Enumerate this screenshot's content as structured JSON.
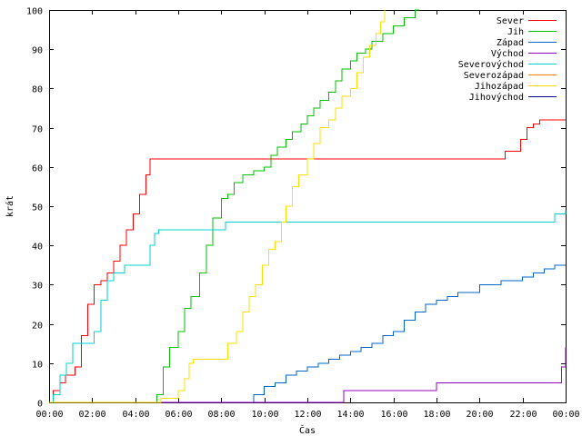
{
  "chart_data": {
    "type": "line",
    "title": "",
    "xlabel": "Čas",
    "ylabel": "krát",
    "xlim": [
      0,
      24
    ],
    "ylim": [
      0,
      100
    ],
    "x_ticks": [
      "00:00",
      "02:00",
      "04:00",
      "06:00",
      "08:00",
      "10:00",
      "12:00",
      "14:00",
      "16:00",
      "18:00",
      "20:00",
      "22:00",
      "00:00"
    ],
    "y_ticks": [
      0,
      10,
      20,
      30,
      40,
      50,
      60,
      70,
      80,
      90,
      100
    ],
    "grid": false,
    "legend_position": "top-right",
    "series": [
      {
        "name": "Sever",
        "color": "#ff0000",
        "x": [
          0,
          0.2,
          0.5,
          0.75,
          1.2,
          1.5,
          1.8,
          2.1,
          2.4,
          2.7,
          3.0,
          3.3,
          3.6,
          3.9,
          4.2,
          4.5,
          4.7,
          4.9,
          5.0,
          8.0,
          12.0,
          16.0,
          20.0,
          21.0,
          21.2,
          21.6,
          21.9,
          22.2,
          22.5,
          22.8,
          23.0,
          24.0
        ],
        "y": [
          0,
          3,
          5,
          7,
          9,
          17,
          25,
          30,
          31,
          33,
          36,
          40,
          44,
          48,
          53,
          58,
          62,
          62,
          62,
          62,
          62,
          62,
          62,
          62,
          64,
          64,
          67,
          70,
          71,
          72,
          72,
          72
        ]
      },
      {
        "name": "Jih",
        "color": "#00c000",
        "x": [
          0,
          4.8,
          5.0,
          5.3,
          5.6,
          6.0,
          6.3,
          6.6,
          7.0,
          7.3,
          7.6,
          8.0,
          8.3,
          8.6,
          9.0,
          9.5,
          10.0,
          10.3,
          10.6,
          11.0,
          11.3,
          11.7,
          12.0,
          12.3,
          12.6,
          13.0,
          13.3,
          13.6,
          14.0,
          14.3,
          14.7,
          15.0,
          15.5,
          16.0,
          16.5,
          17.0,
          17.2,
          18.0,
          24.0
        ],
        "y": [
          0,
          0,
          2,
          9,
          14,
          18,
          24,
          27,
          33,
          40,
          47,
          52,
          53,
          56,
          58,
          59,
          60,
          63,
          65,
          67,
          69,
          71,
          73,
          75,
          77,
          79,
          82,
          85,
          87,
          89,
          90,
          92,
          94,
          96,
          98,
          100,
          100,
          100,
          100
        ],
        "clip_x": 17.2
      },
      {
        "name": "Západ",
        "color": "#0066cc",
        "x": [
          0,
          9.3,
          9.5,
          10.0,
          10.5,
          11.0,
          11.5,
          12.0,
          12.5,
          13.0,
          13.5,
          14.0,
          14.5,
          15.0,
          15.5,
          16.0,
          16.5,
          17.0,
          17.5,
          18.0,
          18.5,
          19.0,
          19.5,
          20.0,
          20.5,
          21.0,
          21.5,
          22.0,
          22.5,
          23.0,
          23.5,
          24.0
        ],
        "y": [
          0,
          0,
          2,
          4,
          5,
          7,
          8,
          9,
          10,
          11,
          12,
          13,
          14,
          15,
          17,
          18,
          21,
          23,
          25,
          26,
          27,
          28,
          28,
          30,
          30,
          31,
          31,
          32,
          33,
          34,
          35,
          35
        ]
      },
      {
        "name": "Východ",
        "color": "#9900cc",
        "x": [
          0,
          13.6,
          13.7,
          17.9,
          18.0,
          23.5,
          23.8,
          24.0
        ],
        "y": [
          0,
          0,
          3,
          3,
          5,
          5,
          9,
          14
        ]
      },
      {
        "name": "Severovýchod",
        "color": "#00d0d0",
        "x": [
          0,
          0.2,
          0.5,
          0.8,
          1.1,
          1.5,
          1.8,
          2.1,
          2.4,
          2.7,
          3.0,
          3.5,
          4.0,
          4.5,
          4.7,
          4.9,
          5.1,
          5.3,
          6.0,
          7.0,
          8.0,
          8.2,
          9.0,
          12.0,
          16.0,
          20.0,
          22.0,
          23.0,
          23.5,
          24.0
        ],
        "y": [
          0,
          2,
          7,
          10,
          15,
          15,
          15,
          18,
          26,
          31,
          33,
          35,
          35,
          35,
          40,
          43,
          44,
          44,
          44,
          44,
          44,
          46,
          46,
          46,
          46,
          46,
          46,
          46,
          48,
          49
        ]
      },
      {
        "name": "Severozápad",
        "color": "#ff7f00",
        "x": [],
        "y": []
      },
      {
        "name": "Jihozápad",
        "color": "#ffdd00",
        "x": [
          0,
          5.0,
          5.2,
          5.7,
          6.0,
          6.3,
          6.5,
          6.7,
          7.0,
          7.5,
          8.0,
          8.3,
          8.7,
          9.0,
          9.3,
          9.6,
          9.9,
          10.2,
          10.5,
          10.8,
          11.0,
          11.3,
          11.6,
          12.0,
          12.3,
          12.6,
          13.0,
          13.3,
          13.6,
          14.0,
          14.3,
          14.6,
          14.9,
          15.2,
          15.4,
          15.6,
          16.0,
          24.0
        ],
        "y": [
          0,
          0,
          1,
          1,
          3,
          6,
          10,
          11,
          11,
          11,
          11,
          15,
          18,
          23,
          27,
          30,
          35,
          39,
          41,
          46,
          50,
          55,
          58,
          62,
          66,
          70,
          72,
          75,
          78,
          80,
          84,
          88,
          91,
          94,
          97,
          100,
          100,
          100
        ],
        "clip_x": 15.6
      },
      {
        "name": "Jihovýchod",
        "color": "#000099",
        "x": [],
        "y": []
      }
    ]
  }
}
